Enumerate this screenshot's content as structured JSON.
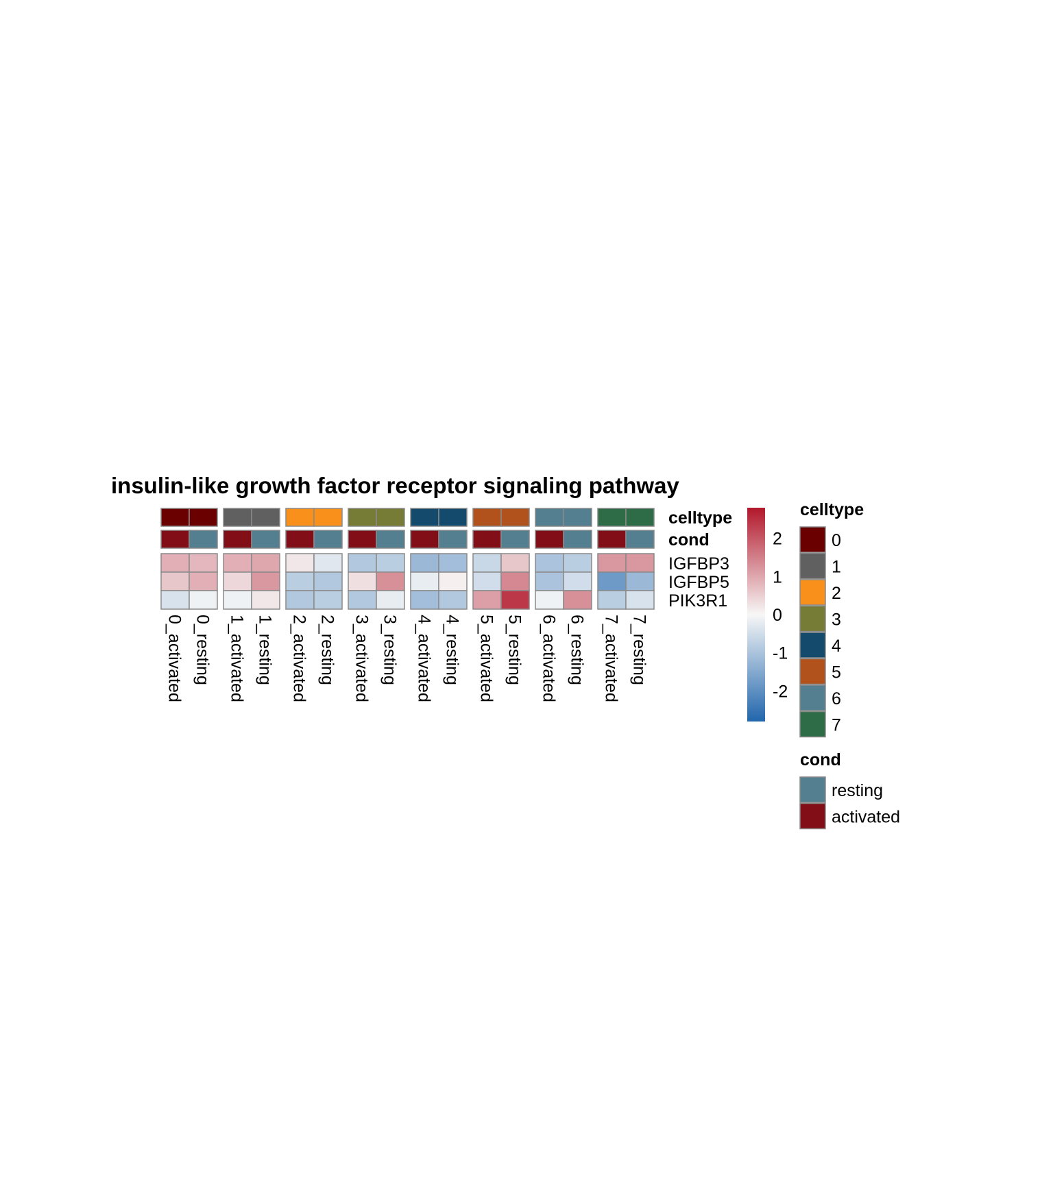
{
  "chart_data": {
    "type": "heatmap",
    "title": "insulin-like growth factor receptor signaling pathway",
    "columns": [
      "0_activated",
      "0_resting",
      "1_activated",
      "1_resting",
      "2_activated",
      "2_resting",
      "3_activated",
      "3_resting",
      "4_activated",
      "4_resting",
      "5_activated",
      "5_resting",
      "6_activated",
      "6_resting",
      "7_activated",
      "7_resting"
    ],
    "column_split_groups": [
      "0",
      "1",
      "2",
      "3",
      "4",
      "5",
      "6",
      "7"
    ],
    "rows": [
      "IGFBP3",
      "IGFBP5",
      "PIK3R1"
    ],
    "values": [
      [
        0.9,
        0.8,
        0.9,
        1.0,
        0.2,
        -0.3,
        -0.9,
        -0.8,
        -1.2,
        -1.1,
        -0.6,
        0.6,
        -1.0,
        -0.8,
        1.2,
        1.2
      ],
      [
        0.6,
        0.9,
        0.4,
        1.2,
        -0.8,
        -0.9,
        0.3,
        1.3,
        -0.2,
        0.1,
        -0.5,
        1.4,
        -1.0,
        -0.5,
        -1.8,
        -1.2
      ],
      [
        -0.4,
        -0.1,
        -0.1,
        0.2,
        -0.9,
        -0.8,
        -0.9,
        -0.2,
        -1.1,
        -0.9,
        1.1,
        2.4,
        -0.1,
        1.3,
        -0.8,
        -0.4
      ]
    ],
    "color_scale": {
      "min": -2.8,
      "max": 2.8,
      "low": "#2166ac",
      "mid": "#f7f7f7",
      "high": "#b2182b",
      "ticks": [
        "2",
        "1",
        "0",
        "-1",
        "-2"
      ],
      "tick_values": [
        2,
        1,
        0,
        -1,
        -2
      ]
    },
    "annotations": [
      {
        "name": "celltype",
        "values": [
          "0",
          "0",
          "1",
          "1",
          "2",
          "2",
          "3",
          "3",
          "4",
          "4",
          "5",
          "5",
          "6",
          "6",
          "7",
          "7"
        ],
        "legend": [
          {
            "label": "0",
            "color": "#6b0000"
          },
          {
            "label": "1",
            "color": "#606060"
          },
          {
            "label": "2",
            "color": "#fa901c"
          },
          {
            "label": "3",
            "color": "#767c35"
          },
          {
            "label": "4",
            "color": "#144a6c"
          },
          {
            "label": "5",
            "color": "#b1511b"
          },
          {
            "label": "6",
            "color": "#537f90"
          },
          {
            "label": "7",
            "color": "#2e6c47"
          }
        ]
      },
      {
        "name": "cond",
        "values": [
          "activated",
          "resting",
          "activated",
          "resting",
          "activated",
          "resting",
          "activated",
          "resting",
          "activated",
          "resting",
          "activated",
          "resting",
          "activated",
          "resting",
          "activated",
          "resting"
        ],
        "legend": [
          {
            "label": "resting",
            "color": "#537f90"
          },
          {
            "label": "activated",
            "color": "#820f18"
          }
        ]
      }
    ]
  }
}
